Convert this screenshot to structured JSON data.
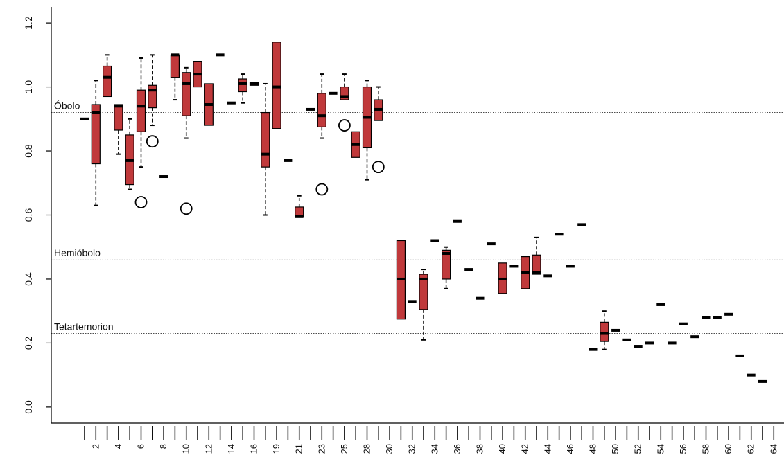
{
  "chart_data": {
    "type": "boxplot",
    "ylim": [
      -0.05,
      1.25
    ],
    "y_ticks": [
      0.0,
      0.2,
      0.4,
      0.6,
      0.8,
      1.0,
      1.2
    ],
    "y_tick_labels": [
      "0.0",
      "0.2",
      "0.4",
      "0.6",
      "0.8",
      "1.0",
      "1.2"
    ],
    "x_ticks_count": 64,
    "x_tick_labels": [
      {
        "pos": 2,
        "label": "2"
      },
      {
        "pos": 4,
        "label": "4"
      },
      {
        "pos": 6,
        "label": "6"
      },
      {
        "pos": 8,
        "label": "8"
      },
      {
        "pos": 10,
        "label": "10"
      },
      {
        "pos": 12,
        "label": "12"
      },
      {
        "pos": 14,
        "label": "14"
      },
      {
        "pos": 16,
        "label": "16"
      },
      {
        "pos": 18,
        "label": "19"
      },
      {
        "pos": 20,
        "label": "21"
      },
      {
        "pos": 22,
        "label": "23"
      },
      {
        "pos": 24,
        "label": "25"
      },
      {
        "pos": 26,
        "label": "28"
      },
      {
        "pos": 28,
        "label": "30"
      },
      {
        "pos": 30,
        "label": "32"
      },
      {
        "pos": 32,
        "label": "34"
      },
      {
        "pos": 34,
        "label": "36"
      },
      {
        "pos": 36,
        "label": "38"
      },
      {
        "pos": 38,
        "label": "40"
      },
      {
        "pos": 40,
        "label": "42"
      },
      {
        "pos": 42,
        "label": "44"
      },
      {
        "pos": 44,
        "label": "46"
      },
      {
        "pos": 46,
        "label": "48"
      },
      {
        "pos": 48,
        "label": "50"
      },
      {
        "pos": 50,
        "label": "52"
      },
      {
        "pos": 52,
        "label": "54"
      },
      {
        "pos": 54,
        "label": "56"
      },
      {
        "pos": 56,
        "label": "58"
      },
      {
        "pos": 58,
        "label": "60"
      },
      {
        "pos": 60,
        "label": "62"
      },
      {
        "pos": 62,
        "label": "64"
      }
    ],
    "reference_lines": [
      {
        "label": "Óbolo",
        "y": 0.92
      },
      {
        "label": "Hemióbolo",
        "y": 0.46
      },
      {
        "label": "Tetartemorion",
        "y": 0.23
      }
    ],
    "box_color": "#c0393b",
    "boxes": [
      {
        "x": 1,
        "med": 0.9
      },
      {
        "x": 2,
        "q1": 0.76,
        "med": 0.92,
        "q3": 0.945,
        "lo": 0.63,
        "hi": 1.02
      },
      {
        "x": 3,
        "q1": 0.97,
        "med": 1.03,
        "q3": 1.065,
        "lo": 0.97,
        "hi": 1.1
      },
      {
        "x": 4,
        "q1": 0.865,
        "med": 0.94,
        "q3": 0.945,
        "lo": 0.79,
        "hi": 0.945
      },
      {
        "x": 5,
        "q1": 0.695,
        "med": 0.77,
        "q3": 0.85,
        "lo": 0.68,
        "hi": 0.9
      },
      {
        "x": 6,
        "q1": 0.86,
        "med": 0.94,
        "q3": 0.99,
        "lo": 0.75,
        "hi": 1.09,
        "out": [
          0.64
        ]
      },
      {
        "x": 7,
        "q1": 0.935,
        "med": 0.99,
        "q3": 1.005,
        "lo": 0.88,
        "hi": 1.1,
        "out": [
          0.83
        ]
      },
      {
        "x": 8,
        "med": 0.72
      },
      {
        "x": 9,
        "q1": 1.03,
        "med": 1.1,
        "q3": 1.1,
        "lo": 0.96,
        "hi": 1.1
      },
      {
        "x": 10,
        "q1": 0.91,
        "med": 1.01,
        "q3": 1.045,
        "lo": 0.84,
        "hi": 1.06,
        "out": [
          0.62
        ]
      },
      {
        "x": 11,
        "q1": 1.0,
        "med": 1.04,
        "q3": 1.08,
        "lo": 1.0,
        "hi": 1.08
      },
      {
        "x": 12,
        "q1": 0.88,
        "med": 0.945,
        "q3": 1.01,
        "lo": 0.88,
        "hi": 1.01
      },
      {
        "x": 13,
        "med": 1.1
      },
      {
        "x": 14,
        "med": 0.95
      },
      {
        "x": 15,
        "q1": 0.985,
        "med": 1.01,
        "q3": 1.025,
        "lo": 0.95,
        "hi": 1.04
      },
      {
        "x": 16,
        "q1": 1.005,
        "med": 1.01,
        "q3": 1.015,
        "lo": 1.005,
        "hi": 1.015
      },
      {
        "x": 17,
        "q1": 0.75,
        "med": 0.79,
        "q3": 0.92,
        "lo": 0.6,
        "hi": 1.01
      },
      {
        "x": 18,
        "q1": 0.87,
        "med": 1.0,
        "q3": 1.14,
        "lo": 0.87,
        "hi": 1.14
      },
      {
        "x": 19,
        "med": 0.77
      },
      {
        "x": 20,
        "q1": 0.595,
        "med": 0.595,
        "q3": 0.625,
        "lo": 0.595,
        "hi": 0.66
      },
      {
        "x": 21,
        "med": 0.93
      },
      {
        "x": 22,
        "q1": 0.875,
        "med": 0.91,
        "q3": 0.98,
        "lo": 0.84,
        "hi": 1.04,
        "out": [
          0.68
        ]
      },
      {
        "x": 23,
        "med": 0.98
      },
      {
        "x": 24,
        "q1": 0.96,
        "med": 0.97,
        "q3": 1.0,
        "lo": 0.96,
        "hi": 1.04,
        "out": [
          0.88
        ]
      },
      {
        "x": 25,
        "q1": 0.78,
        "med": 0.82,
        "q3": 0.86,
        "lo": 0.78,
        "hi": 0.86
      },
      {
        "x": 26,
        "q1": 0.81,
        "med": 0.905,
        "q3": 1.0,
        "lo": 0.71,
        "hi": 1.02
      },
      {
        "x": 27,
        "q1": 0.895,
        "med": 0.93,
        "q3": 0.96,
        "lo": 0.895,
        "hi": 1.0,
        "out": [
          0.75
        ]
      },
      {
        "x": 29,
        "q1": 0.275,
        "med": 0.4,
        "q3": 0.52,
        "lo": 0.275,
        "hi": 0.52
      },
      {
        "x": 30,
        "med": 0.33
      },
      {
        "x": 31,
        "q1": 0.305,
        "med": 0.4,
        "q3": 0.415,
        "lo": 0.21,
        "hi": 0.43
      },
      {
        "x": 32,
        "med": 0.52
      },
      {
        "x": 33,
        "q1": 0.4,
        "med": 0.48,
        "q3": 0.49,
        "lo": 0.37,
        "hi": 0.5
      },
      {
        "x": 34,
        "med": 0.58
      },
      {
        "x": 35,
        "med": 0.43
      },
      {
        "x": 36,
        "med": 0.34
      },
      {
        "x": 37,
        "med": 0.51
      },
      {
        "x": 38,
        "q1": 0.355,
        "med": 0.4,
        "q3": 0.45,
        "lo": 0.355,
        "hi": 0.45
      },
      {
        "x": 39,
        "med": 0.44
      },
      {
        "x": 40,
        "q1": 0.37,
        "med": 0.42,
        "q3": 0.47,
        "lo": 0.37,
        "hi": 0.47
      },
      {
        "x": 41,
        "q1": 0.415,
        "med": 0.42,
        "q3": 0.475,
        "lo": 0.415,
        "hi": 0.53
      },
      {
        "x": 42,
        "med": 0.41
      },
      {
        "x": 43,
        "med": 0.54
      },
      {
        "x": 44,
        "med": 0.44
      },
      {
        "x": 45,
        "med": 0.57
      },
      {
        "x": 46,
        "med": 0.18
      },
      {
        "x": 47,
        "q1": 0.205,
        "med": 0.23,
        "q3": 0.265,
        "lo": 0.18,
        "hi": 0.3
      },
      {
        "x": 48,
        "med": 0.24
      },
      {
        "x": 49,
        "med": 0.21
      },
      {
        "x": 50,
        "med": 0.19
      },
      {
        "x": 51,
        "med": 0.2
      },
      {
        "x": 52,
        "med": 0.32
      },
      {
        "x": 53,
        "med": 0.2
      },
      {
        "x": 54,
        "med": 0.26
      },
      {
        "x": 55,
        "med": 0.22
      },
      {
        "x": 56,
        "med": 0.28
      },
      {
        "x": 57,
        "med": 0.28
      },
      {
        "x": 58,
        "med": 0.29
      },
      {
        "x": 59,
        "med": 0.16
      },
      {
        "x": 60,
        "med": 0.1
      },
      {
        "x": 61,
        "med": 0.08
      }
    ]
  }
}
